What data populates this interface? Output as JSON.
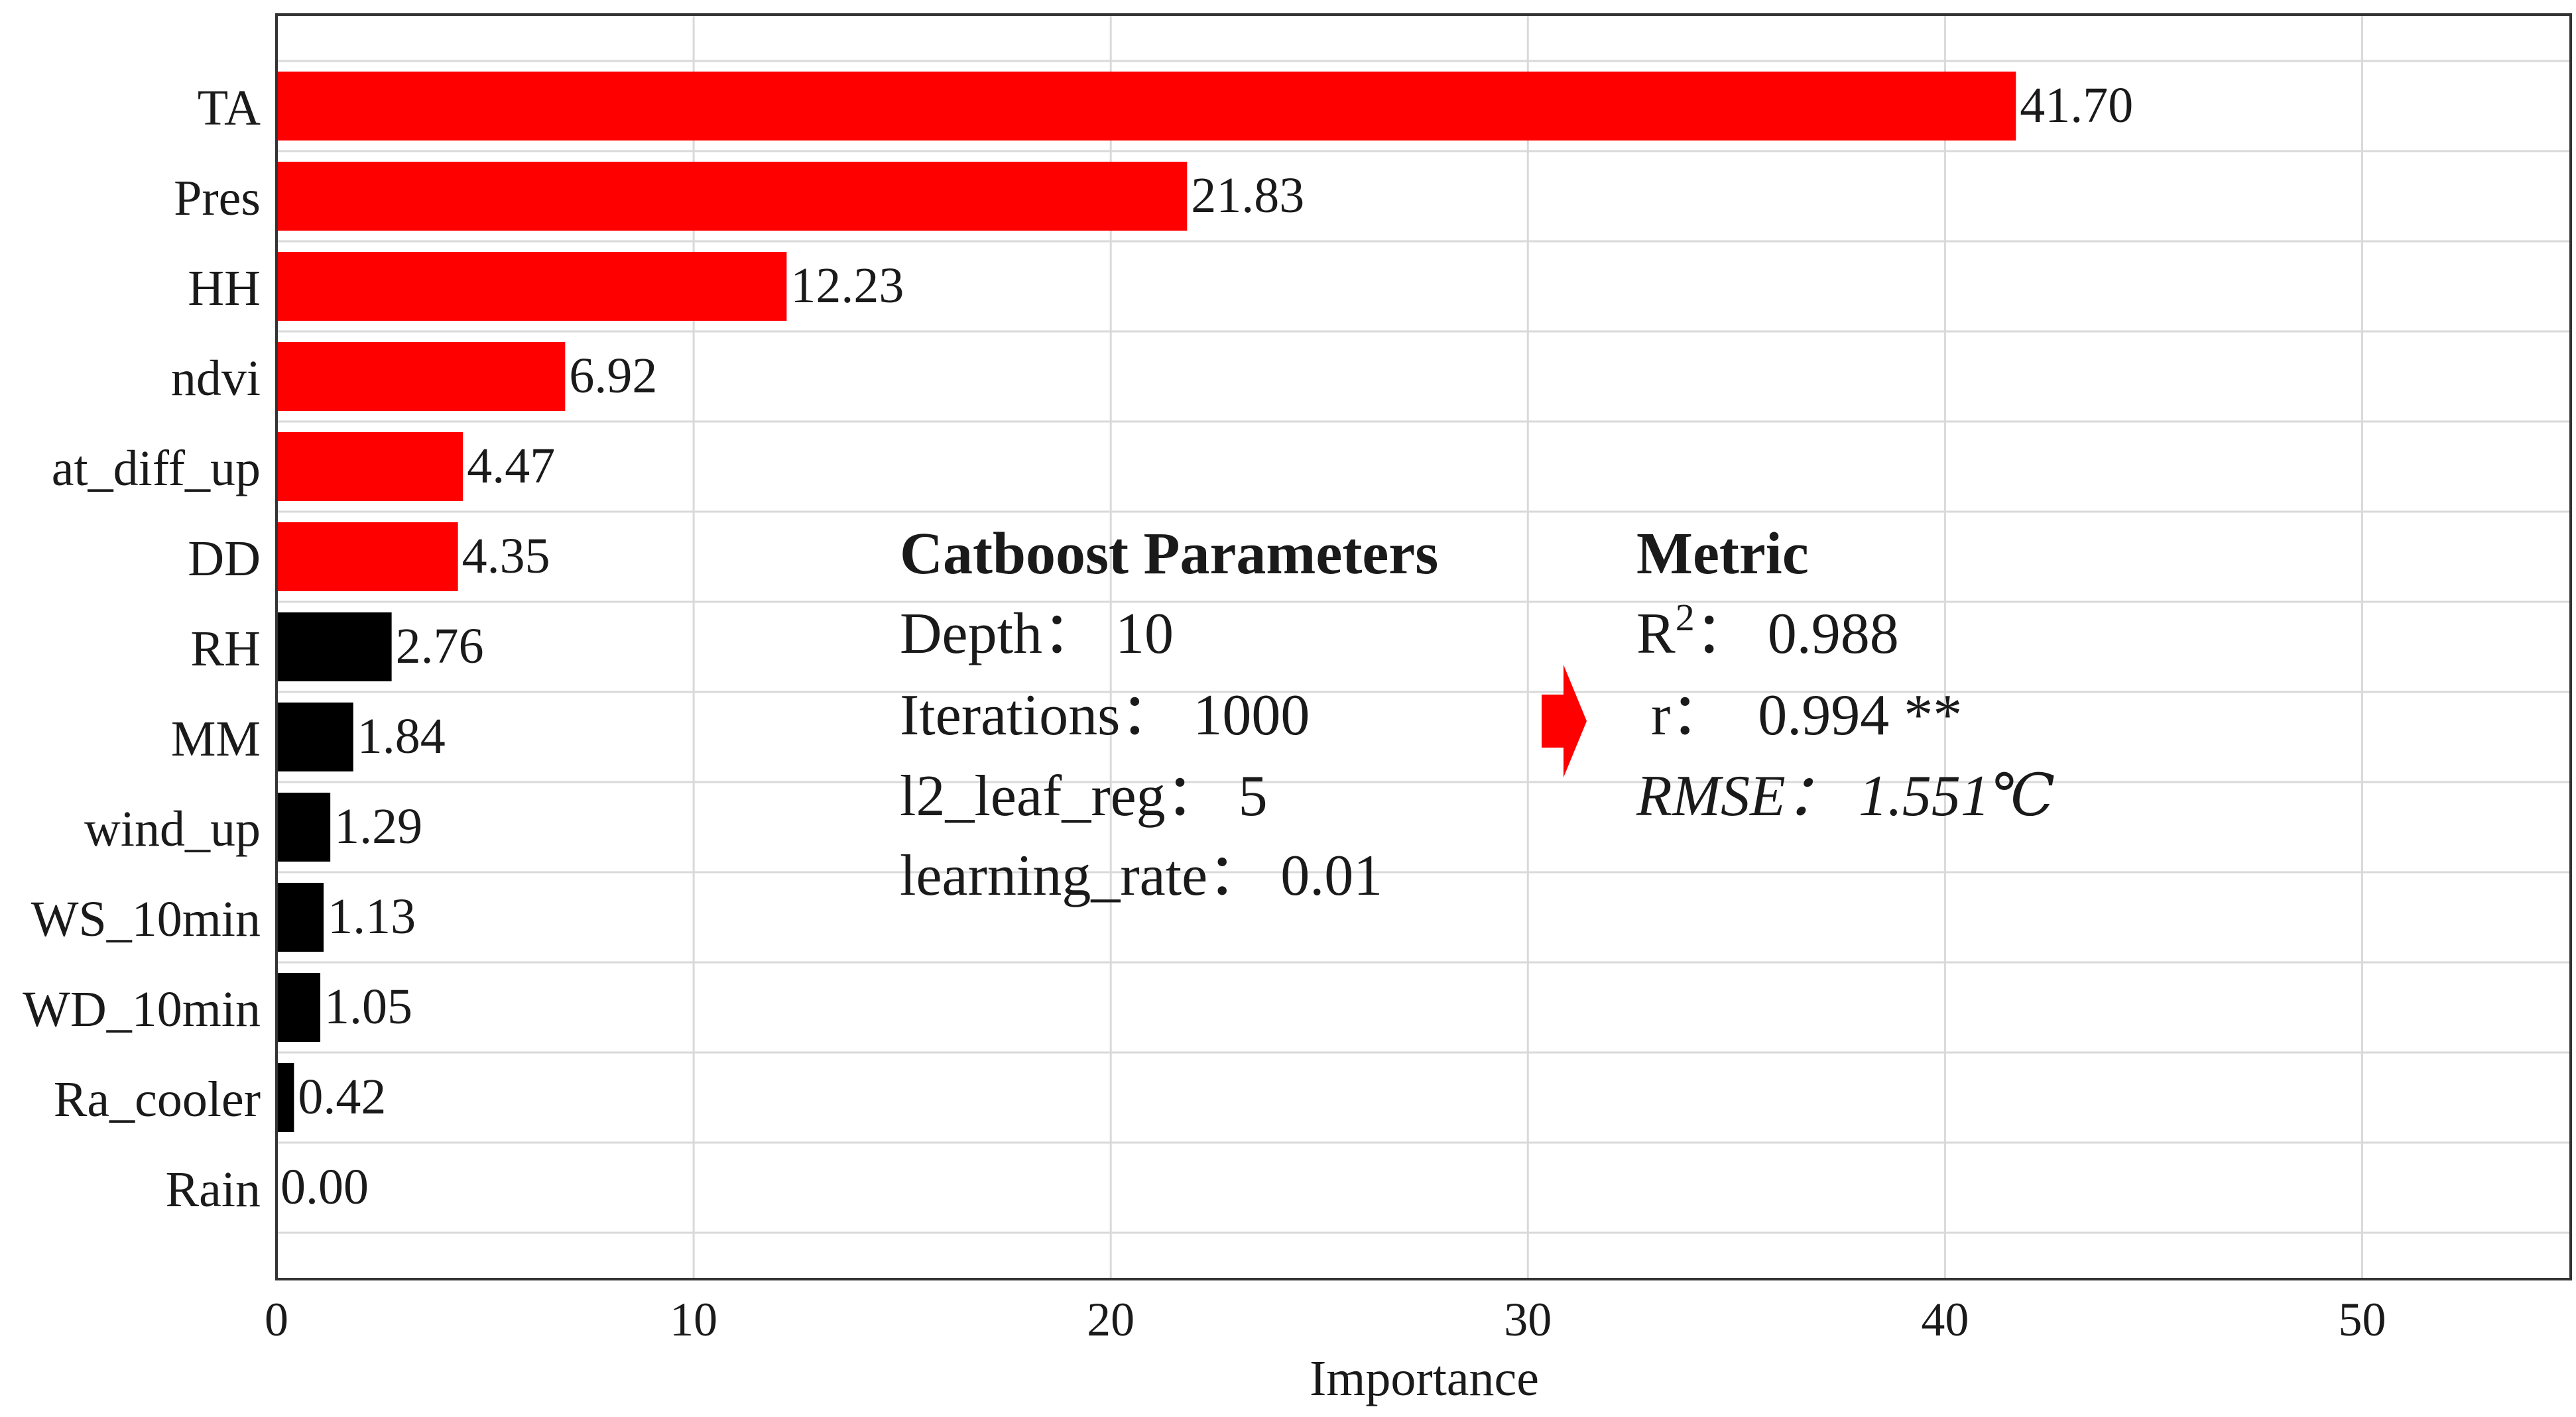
{
  "chart_data": {
    "type": "bar",
    "orientation": "horizontal",
    "categories": [
      "TA",
      "Pres",
      "HH",
      "ndvi",
      "at_diff_up",
      "DD",
      "RH",
      "MM",
      "wind_up",
      "WS_10min",
      "WD_10min",
      "Ra_cooler",
      "Rain"
    ],
    "values": [
      41.7,
      21.83,
      12.23,
      6.92,
      4.47,
      4.35,
      2.76,
      1.84,
      1.29,
      1.13,
      1.05,
      0.42,
      0.0
    ],
    "value_labels": [
      "41.70",
      "21.83",
      "12.23",
      "6.92",
      "4.47",
      "4.35",
      "2.76",
      "1.84",
      "1.29",
      "1.13",
      "1.05",
      "0.42",
      "0.00"
    ],
    "bar_colors": [
      "#ff0000",
      "#ff0000",
      "#ff0000",
      "#ff0000",
      "#ff0000",
      "#ff0000",
      "#000000",
      "#000000",
      "#000000",
      "#000000",
      "#000000",
      "#000000",
      "#000000"
    ],
    "title": "",
    "xlabel": "Importance",
    "ylabel": "",
    "xlim": [
      0,
      55
    ],
    "xticks": [
      0,
      10,
      20,
      30,
      40,
      50
    ],
    "grid": true,
    "legend": "none"
  },
  "annotations": {
    "params": {
      "title": "Catboost Parameters",
      "lines": [
        "Depth：  10",
        "Iterations：  1000",
        "l2_leaf_reg：  5",
        "learning_rate：  0.01"
      ]
    },
    "arrow_color": "#ff0000",
    "metric": {
      "title": "Metric",
      "r2_base": "R",
      "r2_sup": "2",
      "r2_value": "：  0.988",
      "r_line": " r：  0.994 **",
      "rmse_line": "RMSE：  1.551℃"
    }
  }
}
